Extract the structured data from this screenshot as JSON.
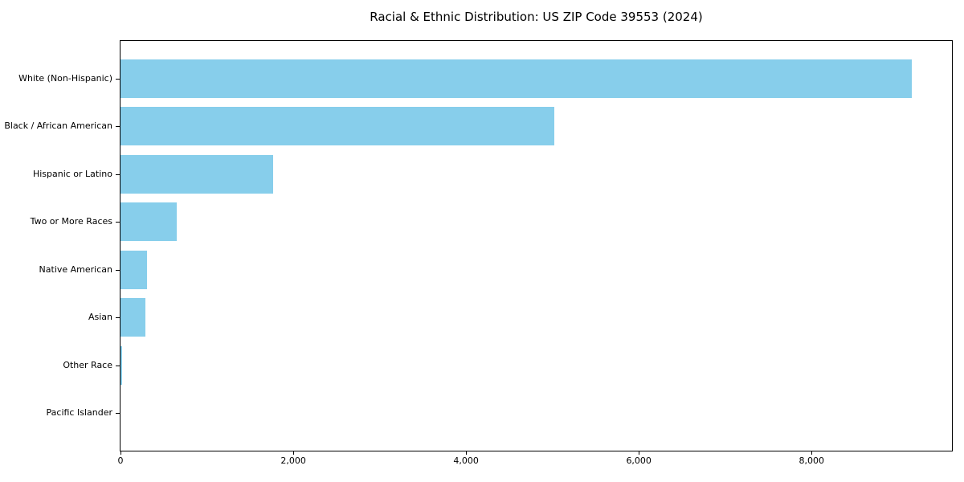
{
  "chart_data": {
    "type": "bar",
    "orientation": "horizontal",
    "title": "Racial & Ethnic Distribution: US ZIP Code 39553 (2024)",
    "categories": [
      "White (Non-Hispanic)",
      "Black / African American",
      "Hispanic or Latino",
      "Two or More Races",
      "Native American",
      "Asian",
      "Other Race",
      "Pacific Islander"
    ],
    "values": [
      9160,
      5020,
      1770,
      650,
      305,
      290,
      15,
      0
    ],
    "bar_color": "#87CEEB",
    "xlabel": "",
    "ylabel": "",
    "xlim": [
      0,
      9625
    ],
    "xticks": [
      0,
      2000,
      4000,
      6000,
      8000
    ],
    "xtick_labels": [
      "0",
      "2,000",
      "4,000",
      "6,000",
      "8,000"
    ],
    "grid": false,
    "legend": false
  }
}
